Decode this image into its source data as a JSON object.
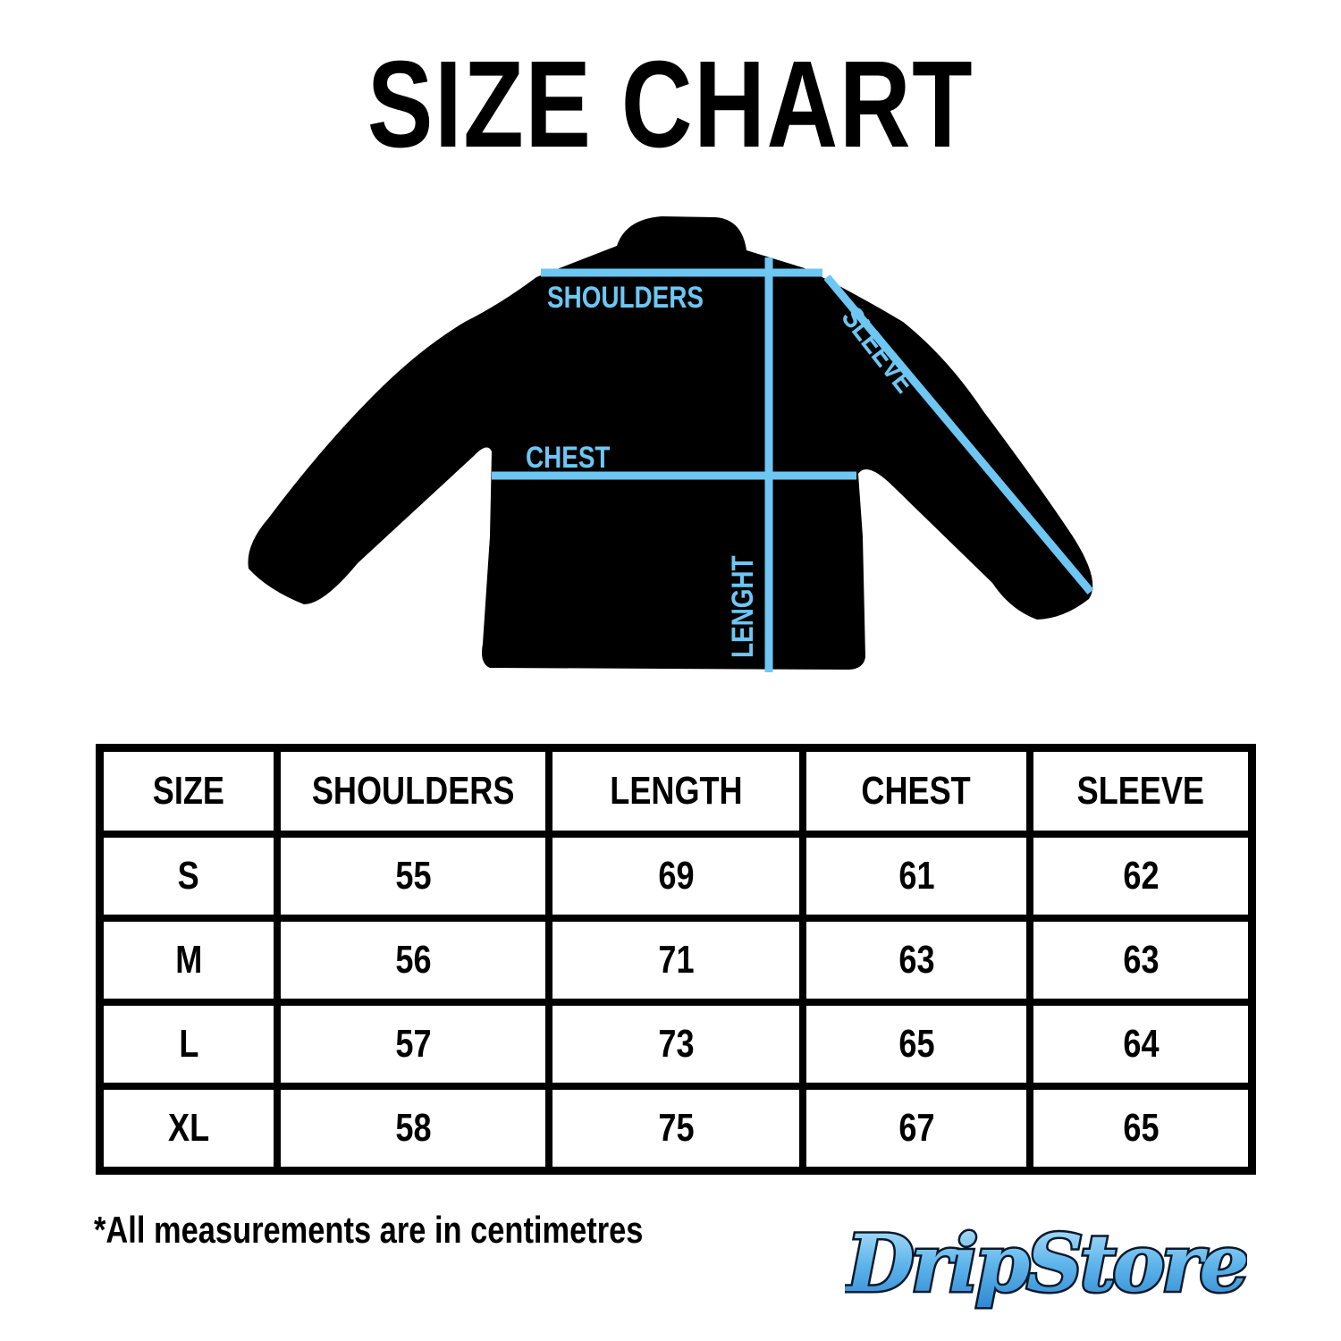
{
  "title": "SIZE CHART",
  "diagram": {
    "labels": {
      "shoulders": "SHOULDERS",
      "chest": "CHEST",
      "length": "LENGHT",
      "sleeve": "SLEEVE"
    },
    "garment_color": "#000000",
    "measure_color": "#6EC6F2"
  },
  "table": {
    "headers": [
      "SIZE",
      "SHOULDERS",
      "LENGTH",
      "CHEST",
      "SLEEVE"
    ],
    "rows": [
      [
        "S",
        "55",
        "69",
        "61",
        "62"
      ],
      [
        "M",
        "56",
        "71",
        "63",
        "63"
      ],
      [
        "L",
        "57",
        "73",
        "65",
        "64"
      ],
      [
        "XL",
        "58",
        "75",
        "67",
        "65"
      ]
    ]
  },
  "footnote": "*All measurements are in centimetres",
  "logo": {
    "text": "DripStore",
    "color": "#3FA3E6"
  }
}
